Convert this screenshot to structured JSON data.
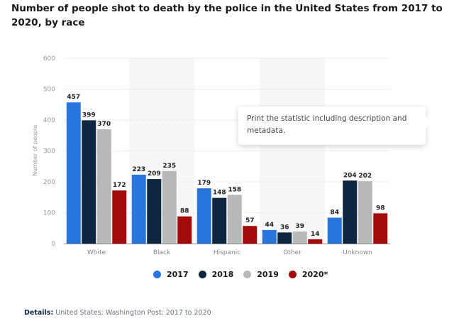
{
  "title": "Number of people shot to death by the police in the United States from 2017 to 2020, by race",
  "tooltip": {
    "text": "Print the statistic including description and metadata."
  },
  "details": {
    "label": "Details:",
    "text": " United States; Washington Post; 2017 to 2020"
  },
  "colors": {
    "2017": "#2876dd",
    "2018": "#0f2640",
    "2019": "#b8b8b8",
    "2020*": "#a30b0b"
  },
  "chart_data": {
    "type": "bar",
    "title": "Number of people shot to death by the police in the United States from 2017 to 2020, by race",
    "xlabel": "",
    "ylabel": "Number of people",
    "ylim": [
      0,
      600
    ],
    "yticks": [
      0,
      100,
      200,
      300,
      400,
      500,
      600
    ],
    "grid": true,
    "legend_position": "bottom",
    "categories": [
      "White",
      "Black",
      "Hispanic",
      "Other",
      "Unknown"
    ],
    "series": [
      {
        "name": "2017",
        "values": [
          457,
          223,
          179,
          44,
          84
        ]
      },
      {
        "name": "2018",
        "values": [
          399,
          209,
          148,
          36,
          204
        ]
      },
      {
        "name": "2019",
        "values": [
          370,
          235,
          158,
          39,
          202
        ]
      },
      {
        "name": "2020*",
        "values": [
          172,
          88,
          57,
          14,
          98
        ]
      }
    ]
  }
}
